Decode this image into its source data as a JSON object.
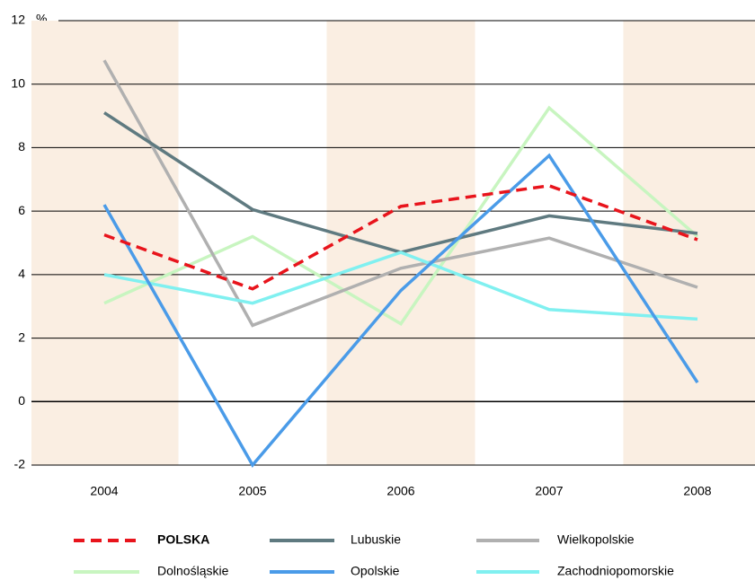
{
  "chart_data": {
    "type": "line",
    "ylabel": "%",
    "categories": [
      "2004",
      "2005",
      "2006",
      "2007",
      "2008"
    ],
    "ylim": [
      -2,
      12
    ],
    "yticks": [
      -2,
      0,
      2,
      4,
      6,
      8,
      10,
      12
    ],
    "grid": true,
    "series": [
      {
        "name": "POLSKA",
        "color": "#e8141c",
        "dashed": true,
        "values": [
          5.25,
          3.55,
          6.15,
          6.8,
          5.1
        ]
      },
      {
        "name": "Lubuskie",
        "color": "#5f7a80",
        "values": [
          9.1,
          6.05,
          4.7,
          5.85,
          5.3
        ]
      },
      {
        "name": "Wielkopolskie",
        "color": "#b0b0b0",
        "values": [
          10.75,
          2.4,
          4.2,
          5.15,
          3.6
        ]
      },
      {
        "name": "Dolnośląskie",
        "color": "#c8f5c0",
        "values": [
          3.1,
          5.2,
          2.45,
          9.25,
          5.2
        ]
      },
      {
        "name": "Opolskie",
        "color": "#4a9be8",
        "values": [
          6.2,
          -2.0,
          3.5,
          7.75,
          0.6
        ]
      },
      {
        "name": "Zachodniopomorskie",
        "color": "#80f0f0",
        "values": [
          4.0,
          3.1,
          4.7,
          2.9,
          2.6
        ]
      }
    ]
  }
}
